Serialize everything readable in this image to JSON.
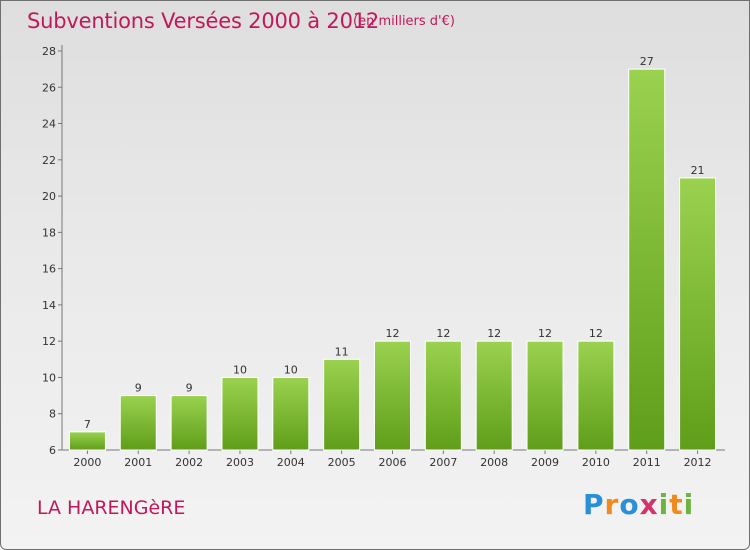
{
  "title": "Subventions Versées 2000 à 2012",
  "unit_note": "(en milliers d'€)",
  "commune": "LA HARENGèRE",
  "logo": {
    "chars": [
      "P",
      "r",
      "o",
      "x",
      "i",
      "t",
      "i"
    ],
    "colors": [
      "#2a8fd6",
      "#f08a1c",
      "#2a8fd6",
      "#d6336c",
      "#6db33f",
      "#f08a1c",
      "#6db33f"
    ]
  },
  "colors": {
    "bar_top": "#9ad24f",
    "bar_bottom": "#5f9e1a",
    "axis": "#777777",
    "title": "#c2185b"
  },
  "chart_data": {
    "type": "bar",
    "title": "Subventions Versées 2000 à 2012",
    "xlabel": "",
    "ylabel": "(en milliers d'€)",
    "categories": [
      "2000",
      "2001",
      "2002",
      "2003",
      "2004",
      "2005",
      "2006",
      "2007",
      "2008",
      "2009",
      "2010",
      "2011",
      "2012"
    ],
    "values": [
      7,
      9,
      9,
      10,
      10,
      11,
      12,
      12,
      12,
      12,
      12,
      27,
      21
    ],
    "ylim": [
      6,
      28
    ],
    "yticks": [
      6,
      8,
      10,
      12,
      14,
      16,
      18,
      20,
      22,
      24,
      26,
      28
    ],
    "grid": false
  }
}
